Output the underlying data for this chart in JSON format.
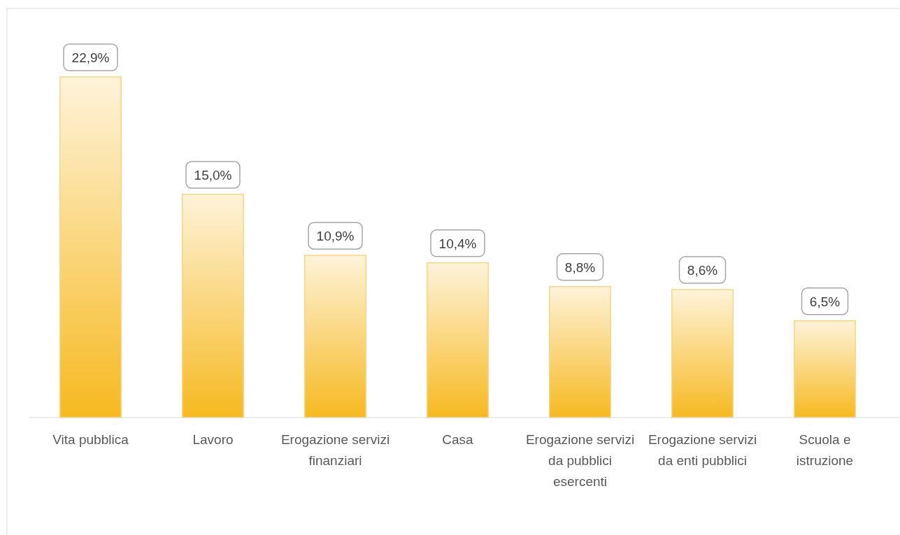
{
  "chart_data": {
    "type": "bar",
    "categories": [
      "Vita pubblica",
      "Lavoro",
      "Erogazione servizi finanziari",
      "Casa",
      "Erogazione servizi da pubblici esercenti",
      "Erogazione servizi da enti pubblici",
      "Scuola e istruzione"
    ],
    "values": [
      22.9,
      15.0,
      10.9,
      10.4,
      8.8,
      8.6,
      6.5
    ],
    "value_labels": [
      "22,9%",
      "15,0%",
      "10,9%",
      "10,4%",
      "8,8%",
      "8,6%",
      "6,5%"
    ],
    "color": "#fad67d"
  }
}
